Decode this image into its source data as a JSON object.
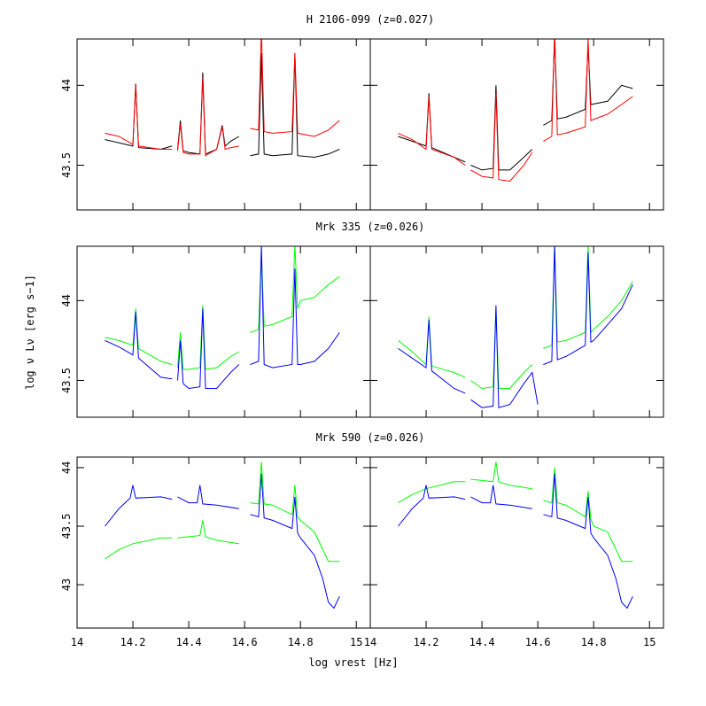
{
  "xlabel": "log νrest [Hz]",
  "ylabel": "log ν Lν [erg s−1]",
  "chart_data": [
    {
      "type": "line",
      "title": "H 2106-099 (z=0.027)",
      "xlim": [
        14,
        15.05
      ],
      "ylim": [
        43.22,
        44.29
      ],
      "xticks": [
        14,
        14.2,
        14.4,
        14.6,
        14.8,
        15
      ],
      "yticks": [
        43.5,
        44
      ],
      "panels": [
        {
          "series": [
            {
              "color": "#000000",
              "x": [
                14.1,
                14.15,
                14.2,
                14.21,
                14.22,
                14.3,
                14.34,
                null,
                14.36,
                14.37,
                14.38,
                14.4,
                14.44,
                14.45,
                14.46,
                14.5,
                14.52,
                14.53,
                14.55,
                14.58,
                null,
                14.62,
                14.65,
                14.66,
                14.67,
                14.7,
                14.77,
                14.78,
                14.79,
                14.85,
                14.9,
                14.94
              ],
              "values": [
                43.66,
                43.64,
                43.62,
                44.01,
                43.61,
                43.6,
                43.62,
                null,
                43.6,
                43.78,
                43.59,
                43.58,
                43.57,
                44.08,
                43.57,
                43.6,
                43.75,
                43.62,
                43.65,
                43.68,
                null,
                43.56,
                43.57,
                44.2,
                43.57,
                43.56,
                43.57,
                44.2,
                43.56,
                43.55,
                43.57,
                43.6
              ]
            },
            {
              "color": "#ff0000",
              "x": [
                14.1,
                14.15,
                14.2,
                14.21,
                14.22,
                14.3,
                14.34,
                null,
                14.36,
                14.37,
                14.38,
                14.4,
                14.44,
                14.45,
                14.46,
                14.5,
                14.52,
                14.53,
                14.55,
                14.58,
                null,
                14.62,
                14.65,
                14.66,
                14.67,
                14.7,
                14.77,
                14.78,
                14.79,
                14.85,
                14.9,
                14.94
              ],
              "values": [
                43.7,
                43.68,
                43.63,
                44.0,
                43.62,
                43.6,
                43.6,
                null,
                43.59,
                43.76,
                43.58,
                43.57,
                43.57,
                44.05,
                43.56,
                43.6,
                43.74,
                43.6,
                43.61,
                43.62,
                null,
                43.73,
                43.72,
                44.35,
                43.71,
                43.7,
                43.71,
                44.2,
                43.7,
                43.68,
                43.72,
                43.78
              ]
            }
          ]
        },
        {
          "series": [
            {
              "color": "#000000",
              "x": [
                14.1,
                14.15,
                14.2,
                14.21,
                14.22,
                14.3,
                14.34,
                null,
                14.36,
                14.4,
                14.44,
                14.45,
                14.46,
                14.5,
                14.55,
                14.58,
                null,
                14.62,
                14.65,
                14.66,
                14.67,
                14.7,
                14.77,
                14.78,
                14.79,
                14.85,
                14.9,
                14.94
              ],
              "values": [
                43.68,
                43.65,
                43.62,
                43.95,
                43.61,
                43.55,
                43.52,
                null,
                43.5,
                43.47,
                43.48,
                44.0,
                43.47,
                43.47,
                43.55,
                43.6,
                null,
                43.75,
                43.78,
                44.3,
                43.79,
                43.8,
                43.85,
                44.25,
                43.88,
                43.9,
                44.0,
                43.98
              ]
            },
            {
              "color": "#ff0000",
              "x": [
                14.1,
                14.15,
                14.2,
                14.21,
                14.22,
                14.3,
                14.34,
                null,
                14.36,
                14.4,
                14.44,
                14.45,
                14.46,
                14.5,
                14.55,
                14.58,
                null,
                14.62,
                14.65,
                14.66,
                14.67,
                14.7,
                14.77,
                14.78,
                14.79,
                14.85,
                14.9,
                14.94
              ],
              "values": [
                43.7,
                43.66,
                43.6,
                43.93,
                43.6,
                43.55,
                43.5,
                null,
                43.47,
                43.43,
                43.42,
                43.95,
                43.41,
                43.4,
                43.5,
                43.58,
                null,
                43.65,
                43.68,
                44.35,
                43.69,
                43.7,
                43.74,
                44.3,
                43.78,
                43.82,
                43.88,
                43.93
              ]
            }
          ]
        }
      ]
    },
    {
      "type": "line",
      "title": "Mrk 335 (z=0.026)",
      "xlim": [
        14,
        15.05
      ],
      "ylim": [
        43.27,
        44.34
      ],
      "xticks": [
        14,
        14.2,
        14.4,
        14.6,
        14.8,
        15
      ],
      "yticks": [
        43.5,
        44
      ],
      "panels": [
        {
          "series": [
            {
              "color": "#00ff00",
              "x": [
                14.1,
                14.15,
                14.2,
                14.21,
                14.22,
                14.3,
                14.34,
                null,
                14.36,
                14.37,
                14.38,
                14.4,
                14.44,
                14.45,
                14.46,
                14.5,
                14.55,
                14.58,
                null,
                14.62,
                14.65,
                14.66,
                14.67,
                14.7,
                14.77,
                14.78,
                14.79,
                14.8,
                14.85,
                14.9,
                14.94
              ],
              "values": [
                43.77,
                43.75,
                43.72,
                43.95,
                43.7,
                43.62,
                43.6,
                null,
                43.58,
                43.8,
                43.57,
                43.57,
                43.58,
                43.97,
                43.57,
                43.58,
                43.65,
                43.68,
                null,
                43.8,
                43.82,
                44.3,
                43.84,
                43.85,
                43.9,
                44.35,
                43.95,
                44.0,
                44.02,
                44.1,
                44.15
              ]
            },
            {
              "color": "#0000ff",
              "x": [
                14.1,
                14.15,
                14.2,
                14.21,
                14.22,
                14.3,
                14.34,
                null,
                14.36,
                14.37,
                14.38,
                14.4,
                14.44,
                14.45,
                14.46,
                14.5,
                14.55,
                14.58,
                null,
                14.62,
                14.65,
                14.66,
                14.67,
                14.7,
                14.77,
                14.78,
                14.79,
                14.8,
                14.85,
                14.9,
                14.94
              ],
              "values": [
                43.75,
                43.71,
                43.66,
                43.93,
                43.64,
                43.52,
                43.51,
                null,
                43.5,
                43.75,
                43.48,
                43.45,
                43.46,
                43.95,
                43.45,
                43.45,
                43.55,
                43.6,
                null,
                43.6,
                43.62,
                44.35,
                43.6,
                43.58,
                43.6,
                44.2,
                43.6,
                43.6,
                43.62,
                43.7,
                43.8
              ]
            }
          ]
        },
        {
          "series": [
            {
              "color": "#00ff00",
              "x": [
                14.1,
                14.15,
                14.2,
                14.21,
                14.22,
                14.3,
                14.34,
                null,
                14.36,
                14.4,
                14.44,
                14.45,
                14.46,
                14.5,
                14.55,
                14.58,
                null,
                14.62,
                14.65,
                14.66,
                14.67,
                14.7,
                14.77,
                14.78,
                14.79,
                14.8,
                14.85,
                14.9,
                14.94
              ],
              "values": [
                43.75,
                43.68,
                43.6,
                43.9,
                43.59,
                43.55,
                43.52,
                null,
                43.5,
                43.45,
                43.46,
                43.95,
                43.45,
                43.45,
                43.55,
                43.6,
                null,
                43.7,
                43.72,
                44.35,
                43.74,
                43.75,
                43.8,
                44.35,
                43.8,
                43.82,
                43.9,
                44.0,
                44.12
              ]
            },
            {
              "color": "#0000ff",
              "x": [
                14.1,
                14.15,
                14.2,
                14.21,
                14.22,
                14.3,
                14.34,
                null,
                14.36,
                14.4,
                14.44,
                14.45,
                14.46,
                14.5,
                14.55,
                14.58,
                14.6,
                null,
                14.62,
                14.65,
                14.66,
                14.67,
                14.7,
                14.77,
                14.78,
                14.79,
                14.8,
                14.85,
                14.9,
                14.94
              ],
              "values": [
                43.7,
                43.64,
                43.58,
                43.88,
                43.56,
                43.45,
                43.42,
                null,
                43.38,
                43.33,
                43.34,
                43.97,
                43.33,
                43.35,
                43.48,
                43.55,
                43.35,
                null,
                43.6,
                43.62,
                44.35,
                43.63,
                43.65,
                43.72,
                44.3,
                43.74,
                43.75,
                43.85,
                43.95,
                44.1
              ]
            }
          ]
        }
      ]
    },
    {
      "type": "line",
      "title": "Mrk 590 (z=0.026)",
      "xlim": [
        14,
        15.05
      ],
      "ylim": [
        42.63,
        44.09
      ],
      "xticks": [
        14,
        14.2,
        14.4,
        14.6,
        14.8,
        15
      ],
      "yticks": [
        43,
        43.5,
        44
      ],
      "panels": [
        {
          "series": [
            {
              "color": "#0000ff",
              "x": [
                14.1,
                14.15,
                14.19,
                14.2,
                14.21,
                14.3,
                14.34,
                null,
                14.36,
                14.4,
                14.43,
                14.44,
                14.45,
                14.5,
                14.58,
                null,
                14.62,
                14.65,
                14.66,
                14.67,
                14.7,
                14.77,
                14.78,
                14.79,
                14.8,
                14.85,
                14.88,
                14.9,
                14.92,
                14.94
              ],
              "values": [
                43.5,
                43.65,
                43.74,
                43.85,
                43.74,
                43.75,
                43.73,
                null,
                43.75,
                43.7,
                43.7,
                43.85,
                43.69,
                43.68,
                43.65,
                null,
                43.6,
                43.58,
                43.95,
                43.57,
                43.55,
                43.48,
                43.75,
                43.44,
                43.4,
                43.25,
                43.05,
                42.85,
                42.8,
                42.9
              ]
            },
            {
              "color": "#00ff00",
              "x": [
                14.1,
                14.15,
                14.2,
                14.3,
                14.34,
                null,
                14.36,
                14.4,
                14.44,
                14.45,
                14.46,
                14.5,
                14.58,
                null,
                14.62,
                14.65,
                14.66,
                14.67,
                14.7,
                14.77,
                14.78,
                14.79,
                14.8,
                14.85,
                14.9,
                14.94
              ],
              "values": [
                43.22,
                43.3,
                43.35,
                43.4,
                43.4,
                null,
                43.4,
                43.41,
                43.42,
                43.55,
                43.41,
                43.38,
                43.35,
                null,
                43.7,
                43.69,
                44.05,
                43.69,
                43.68,
                43.6,
                43.85,
                43.58,
                43.55,
                43.45,
                43.2,
                43.2
              ]
            }
          ]
        },
        {
          "series": [
            {
              "color": "#00ff00",
              "x": [
                14.1,
                14.15,
                14.2,
                14.3,
                14.34,
                null,
                14.36,
                14.4,
                14.44,
                14.45,
                14.46,
                14.5,
                14.58,
                null,
                14.62,
                14.65,
                14.66,
                14.67,
                14.7,
                14.77,
                14.78,
                14.79,
                14.8,
                14.85,
                14.9,
                14.94
              ],
              "values": [
                43.7,
                43.77,
                43.82,
                43.88,
                43.88,
                null,
                43.9,
                43.89,
                43.88,
                44.05,
                43.88,
                43.85,
                43.82,
                null,
                43.72,
                43.7,
                44.0,
                43.7,
                43.68,
                43.58,
                43.8,
                43.56,
                43.5,
                43.45,
                43.2,
                43.2
              ]
            },
            {
              "color": "#0000ff",
              "x": [
                14.1,
                14.15,
                14.19,
                14.2,
                14.21,
                14.3,
                14.34,
                null,
                14.36,
                14.4,
                14.43,
                14.44,
                14.45,
                14.5,
                14.58,
                null,
                14.62,
                14.65,
                14.66,
                14.67,
                14.7,
                14.77,
                14.78,
                14.79,
                14.8,
                14.85,
                14.88,
                14.9,
                14.92,
                14.94
              ],
              "values": [
                43.5,
                43.65,
                43.74,
                43.85,
                43.74,
                43.75,
                43.73,
                null,
                43.75,
                43.7,
                43.7,
                43.85,
                43.69,
                43.68,
                43.65,
                null,
                43.6,
                43.58,
                43.95,
                43.57,
                43.55,
                43.48,
                43.75,
                43.44,
                43.4,
                43.25,
                43.05,
                42.85,
                42.8,
                42.9
              ]
            }
          ]
        }
      ]
    }
  ]
}
